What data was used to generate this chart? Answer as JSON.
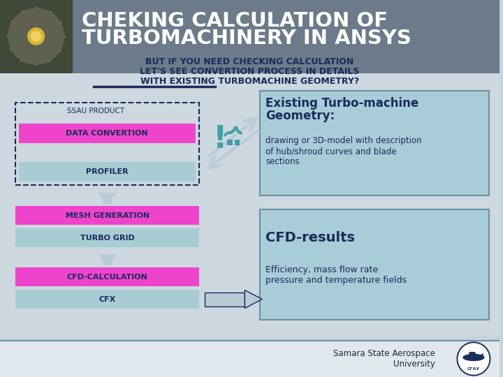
{
  "title_line1": "CHEKING CALCULATION OF",
  "title_line2": "TURBOMACHINERY IN ANSYS",
  "subtitle_line1": "BUT IF YOU NEED CHECKING CALCULATION",
  "subtitle_line2": "LET'S SEE CONVERTION PROCESS IN DETAILS",
  "subtitle_line3": "WITH EXISTING TURBOMACHINE GEOMETRY?",
  "header_bg": "#6b7b8a",
  "slide_bg": "#c8d4dc",
  "box_right_bg": "#a8ccd8",
  "magenta": "#ee44cc",
  "teal_box": "#a8ccd4",
  "dark_navy": "#1a2a5a",
  "teal_arrow": "#40a0a8",
  "light_arrow": "#b8ccd8",
  "footer_bg": "#e0e8ee",
  "footer_line": "#7090a8",
  "ssau_label": "SSAU PRODUCT",
  "box1_top": "DATA CONVERTION",
  "box1_bot": "PROFILER",
  "box2_top": "MESH GENERATION",
  "box2_bot": "TURBO GRID",
  "box3_top": "CFD-CALCULATION",
  "box3_bot": "CFX",
  "right_title1": "Existing Turbo-machine",
  "right_title2": "Geometry:",
  "right_desc": "drawing or 3D-model with description\nof hub/shroud curves and blade\nsections",
  "right_title3": "CFD-results",
  "right_desc2": "Efficiency, mass flow rate\npressure and temperature fields",
  "footer_text": "Samara State Aerospace\nUniversity"
}
